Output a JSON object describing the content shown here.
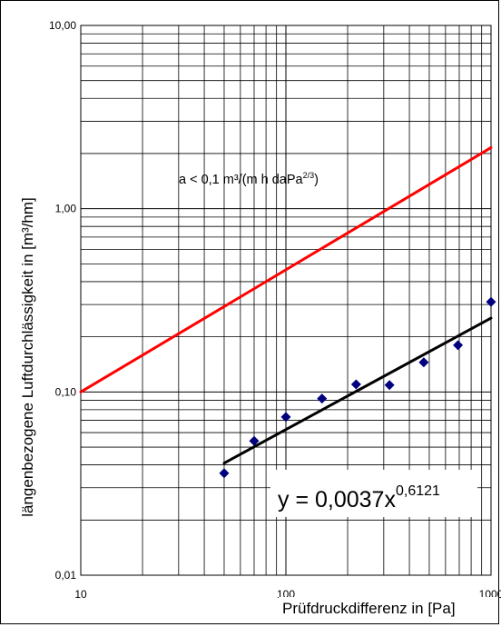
{
  "chart_data": {
    "type": "scatter",
    "xlabel": "Prüfdruckdifferenz in [Pa]",
    "ylabel": "längenbezogene Luftdurchlässigkeit in [m³/hm]",
    "x_scale": "log",
    "y_scale": "log",
    "xlim": [
      10,
      1000
    ],
    "ylim": [
      0.01,
      10
    ],
    "x_tick_labels": [
      "10",
      "100",
      "1000"
    ],
    "y_tick_labels": [
      "0,01",
      "0,10",
      "1,00",
      "10,00"
    ],
    "x_ticks": [
      10,
      100,
      1000
    ],
    "y_ticks": [
      0.01,
      0.1,
      1,
      10
    ],
    "grid": true,
    "series": [
      {
        "kind": "line",
        "color": "#ff0000",
        "x": [
          10,
          1000
        ],
        "y": [
          0.1,
          2.154
        ]
      },
      {
        "kind": "points",
        "color": "#00007f",
        "marker": "diamond",
        "x": [
          50,
          70,
          100,
          150,
          220,
          320,
          470,
          690,
          1000
        ],
        "y": [
          0.036,
          0.054,
          0.073,
          0.092,
          0.11,
          0.109,
          0.145,
          0.18,
          0.31
        ]
      },
      {
        "kind": "fit-line",
        "color": "#000000",
        "x": [
          50,
          1000
        ],
        "y": [
          0.0409,
          0.253
        ]
      }
    ],
    "annotations": {
      "red_line_label": {
        "main": "a < 0,1 m³/(m h daPa",
        "sup": "2/3",
        "end": ")"
      },
      "equation": {
        "main": "y = 0,0037x",
        "sup": "0,6121"
      }
    }
  }
}
